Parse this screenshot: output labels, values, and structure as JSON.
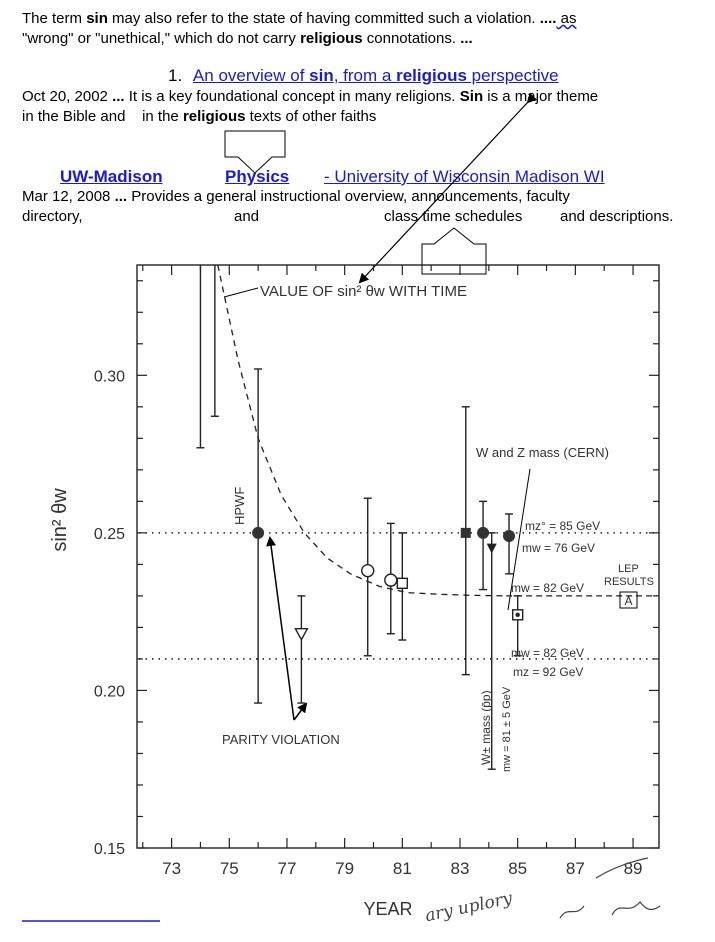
{
  "snippet1": {
    "line1_a": "The term ",
    "line1_b": "sin",
    "line1_c": " may also refer to the state of having committed such a violation. ",
    "line1_d": "....",
    "line1_e": " as",
    "line2_a": "\"wrong\" or \"unethical,\" which do not carry ",
    "line2_b": "religious",
    "line2_c": " connotations. ",
    "line2_d": "..."
  },
  "result1": {
    "number": "1.",
    "title_a": "An overview of ",
    "title_b": "sin",
    "title_c": ", from a ",
    "title_d": "religious",
    "title_e": " perspective",
    "desc1_a": "Oct 20, 2002 ",
    "desc1_b": "...",
    "desc1_c": " It is a key foundational concept in many religions. ",
    "desc1_d": "Sin",
    "desc1_e": " is a major theme",
    "desc2_a": "in the Bible and    in the ",
    "desc2_b": "religious",
    "desc2_c": " texts of other faiths"
  },
  "result2": {
    "title_a": "UW-Madison",
    "title_b": "Physics",
    "title_c": "- University of Wisconsin Madison WI",
    "desc1_a": "Mar 12, 2008 ",
    "desc1_b": "...",
    "desc1_c": " Provides a general instructional overview, announcements, faculty",
    "desc2_a": "directory,",
    "desc2_b": "and",
    "desc2_c": "class time schedules",
    "desc2_d": "and descriptions."
  },
  "handwriting": "ary uplory",
  "chart_data": {
    "type": "scatter",
    "title": "VALUE OF sin² θw WITH TIME",
    "xlabel": "YEAR",
    "ylabel": "sin² θw",
    "xlim": [
      71.8,
      89.9
    ],
    "ylim": [
      0.15,
      0.335
    ],
    "xticks": [
      "73",
      "75",
      "77",
      "79",
      "81",
      "83",
      "85",
      "87",
      "89"
    ],
    "yticks": [
      "0.15",
      "0.20",
      "0.25",
      "0.30"
    ],
    "reference_lines": [
      {
        "y": 0.25,
        "style": "dotted"
      },
      {
        "y": 0.21,
        "style": "dotted"
      },
      {
        "y": 0.23,
        "style": "dashed",
        "from_x": 84.6
      }
    ],
    "trend_curve": {
      "style": "dashed",
      "x": [
        74.6,
        75.3,
        76,
        76.8,
        77.6,
        78.4,
        79.2,
        80.2,
        81.2,
        82.3,
        83.4,
        84.6
      ],
      "y": [
        0.335,
        0.305,
        0.28,
        0.262,
        0.25,
        0.242,
        0.237,
        0.233,
        0.231,
        0.2305,
        0.2302,
        0.23
      ]
    },
    "points": [
      {
        "x": 74.0,
        "y": null,
        "ylow": 0.277,
        "yhigh": 0.335,
        "marker": "none"
      },
      {
        "x": 74.5,
        "y": null,
        "ylow": 0.287,
        "yhigh": 0.335,
        "marker": "none"
      },
      {
        "x": 76.0,
        "y": 0.25,
        "ylow": 0.196,
        "yhigh": 0.302,
        "marker": "filled-circle"
      },
      {
        "x": 77.5,
        "y": 0.218,
        "ylow": 0.196,
        "yhigh": 0.23,
        "marker": "open-triangle-down"
      },
      {
        "x": 79.8,
        "y": 0.238,
        "ylow": 0.211,
        "yhigh": 0.261,
        "marker": "open-circle"
      },
      {
        "x": 80.6,
        "y": 0.235,
        "ylow": 0.218,
        "yhigh": 0.253,
        "marker": "open-circle"
      },
      {
        "x": 81.0,
        "y": 0.234,
        "ylow": 0.216,
        "yhigh": 0.25,
        "marker": "open-square"
      },
      {
        "x": 83.2,
        "y": 0.25,
        "ylow": 0.205,
        "yhigh": 0.29,
        "marker": "filled-square"
      },
      {
        "x": 83.8,
        "y": 0.25,
        "ylow": 0.232,
        "yhigh": 0.26,
        "marker": "filled-circle"
      },
      {
        "x": 84.1,
        "y": null,
        "ylow": 0.175,
        "yhigh": 0.25,
        "marker": "filled-triangle-down"
      },
      {
        "x": 84.7,
        "y": 0.249,
        "ylow": 0.237,
        "yhigh": 0.256,
        "marker": "filled-circle"
      },
      {
        "x": 85.0,
        "y": 0.224,
        "ylow": 0.211,
        "yhigh": 0.23,
        "marker": "square-dot"
      }
    ],
    "annotations": {
      "hpwf": "HPWF",
      "parity": "PARITY VIOLATION",
      "wz_mass": "W and Z mass (CERN)",
      "mz85": "mz° = 85 GeV",
      "mw76": "mw = 76 GeV",
      "mw82a": "mw = 82 GeV",
      "lep1": "LEP",
      "lep2": "RESULTS",
      "lep_box": "A",
      "mw82b": "mw = 82 GeV",
      "mz92": "mz = 92 GeV",
      "wmass1": "W± mass (p̄p)",
      "wmass2": "mw = 81 ± 5 GeV"
    }
  }
}
